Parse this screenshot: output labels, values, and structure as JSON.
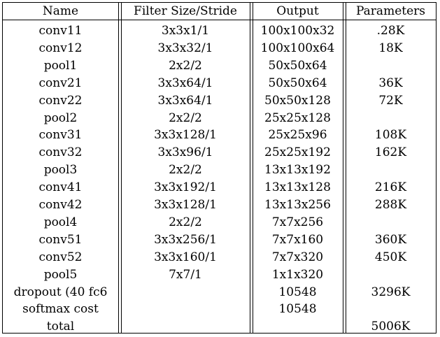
{
  "table": {
    "headers": [
      "Name",
      "Filter Size/Stride",
      "Output",
      "Parameters"
    ],
    "rows": [
      [
        "conv11",
        "3x3x1/1",
        "100x100x32",
        ".28K"
      ],
      [
        "conv12",
        "3x3x32/1",
        "100x100x64",
        "18K"
      ],
      [
        "pool1",
        "2x2/2",
        "50x50x64",
        ""
      ],
      [
        "conv21",
        "3x3x64/1",
        "50x50x64",
        "36K"
      ],
      [
        "conv22",
        "3x3x64/1",
        "50x50x128",
        "72K"
      ],
      [
        "pool2",
        "2x2/2",
        "25x25x128",
        ""
      ],
      [
        "conv31",
        "3x3x128/1",
        "25x25x96",
        "108K"
      ],
      [
        "conv32",
        "3x3x96/1",
        "25x25x192",
        "162K"
      ],
      [
        "pool3",
        "2x2/2",
        "13x13x192",
        ""
      ],
      [
        "conv41",
        "3x3x192/1",
        "13x13x128",
        "216K"
      ],
      [
        "conv42",
        "3x3x128/1",
        "13x13x256",
        "288K"
      ],
      [
        "pool4",
        "2x2/2",
        "7x7x256",
        ""
      ],
      [
        "conv51",
        "3x3x256/1",
        "7x7x160",
        "360K"
      ],
      [
        "conv52",
        "3x3x160/1",
        "7x7x320",
        "450K"
      ],
      [
        "pool5",
        "7x7/1",
        "1x1x320",
        ""
      ],
      [
        "dropout (40 fc6",
        "",
        "10548",
        "3296K"
      ],
      [
        "softmax cost",
        "",
        "10548",
        ""
      ],
      [
        "total",
        "",
        "",
        "5006K"
      ]
    ]
  }
}
